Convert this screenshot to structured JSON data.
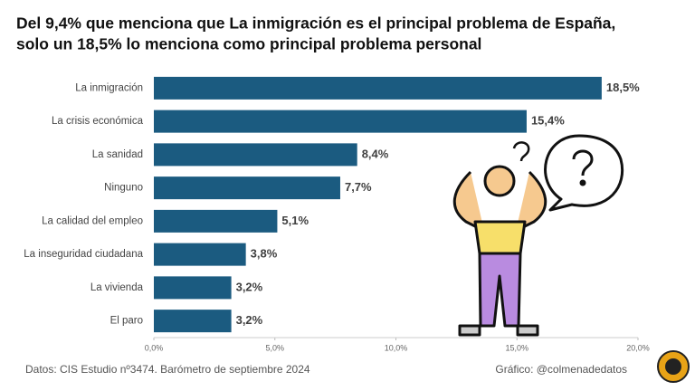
{
  "chart_data": {
    "type": "bar",
    "orientation": "horizontal",
    "title": [
      "Del 9,4% que menciona que La inmigración es el principal problema de España,",
      "solo un 18,5% lo menciona como principal problema personal"
    ],
    "categories": [
      "La inmigración",
      "La crisis económica",
      "La sanidad",
      "Ninguno",
      "La calidad del empleo",
      "La inseguridad ciudadana",
      "La vivienda",
      "El paro"
    ],
    "values": [
      18.5,
      15.4,
      8.4,
      7.7,
      5.1,
      3.8,
      3.2,
      3.2
    ],
    "value_labels": [
      "18,5%",
      "15,4%",
      "8,4%",
      "7,7%",
      "5,1%",
      "3,8%",
      "3,2%",
      "3,2%"
    ],
    "color": "#1b5b80",
    "xlim": [
      0,
      20
    ],
    "xticks": [
      {
        "value": 0,
        "label": "0,0%"
      },
      {
        "value": 5,
        "label": "5,0%"
      },
      {
        "value": 10,
        "label": "10,0%"
      },
      {
        "value": 15,
        "label": "15,0%"
      },
      {
        "value": 20,
        "label": "20,0%"
      }
    ],
    "source": "Datos: CIS Estudio nº3474. Barómetro de septiembre 2024",
    "credit": "Gráfico: @colmenadedatos"
  }
}
